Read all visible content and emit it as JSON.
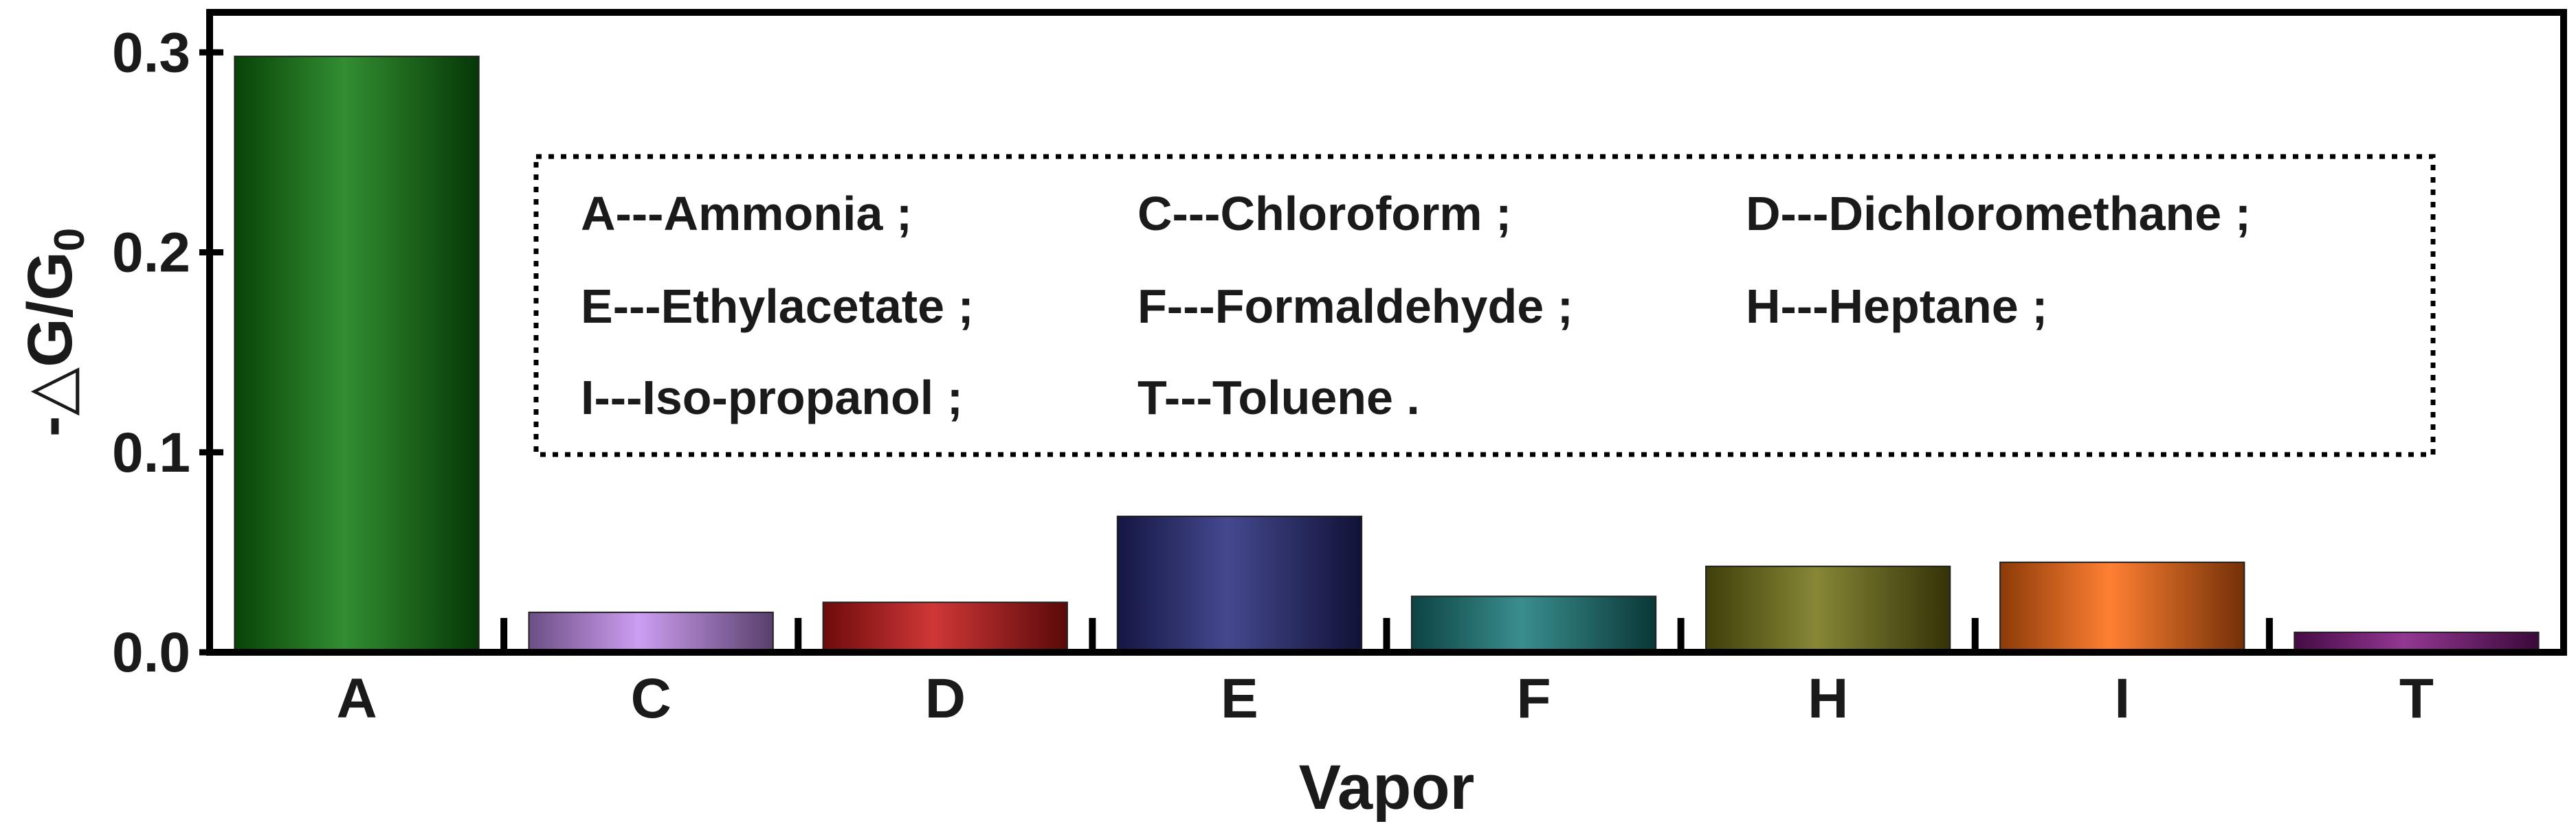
{
  "chart_data": {
    "type": "bar",
    "categories": [
      "A",
      "C",
      "D",
      "E",
      "F",
      "H",
      "I",
      "T"
    ],
    "values": [
      0.298,
      0.02,
      0.025,
      0.068,
      0.028,
      0.043,
      0.045,
      0.01
    ],
    "colors": [
      "#0e7a0e",
      "#c48df0",
      "#c81414",
      "#24287a",
      "#177a7a",
      "#727212",
      "#ff6a0f",
      "#801480"
    ],
    "xlabel": "Vapor",
    "ylabel_prefix": "-",
    "ylabel_symbol": "△",
    "ylabel_main": "G/G",
    "ylabel_subscript": "0",
    "ylim": [
      0,
      0.32
    ],
    "yticks": [
      "0.0",
      "0.1",
      "0.2",
      "0.3"
    ],
    "ytick_values": [
      0.0,
      0.1,
      0.2,
      0.3
    ],
    "legend": {
      "placement": "top-center",
      "border": "dotted",
      "entries": [
        "A---Ammonia ;",
        "C---Chloroform ;",
        "D---Dichloromethane ;",
        "E---Ethylacetate ;",
        "F---Formaldehyde ;",
        "H---Heptane ;",
        "I---Iso-propanol ;",
        "T---Toluene ."
      ]
    },
    "grid": false
  }
}
